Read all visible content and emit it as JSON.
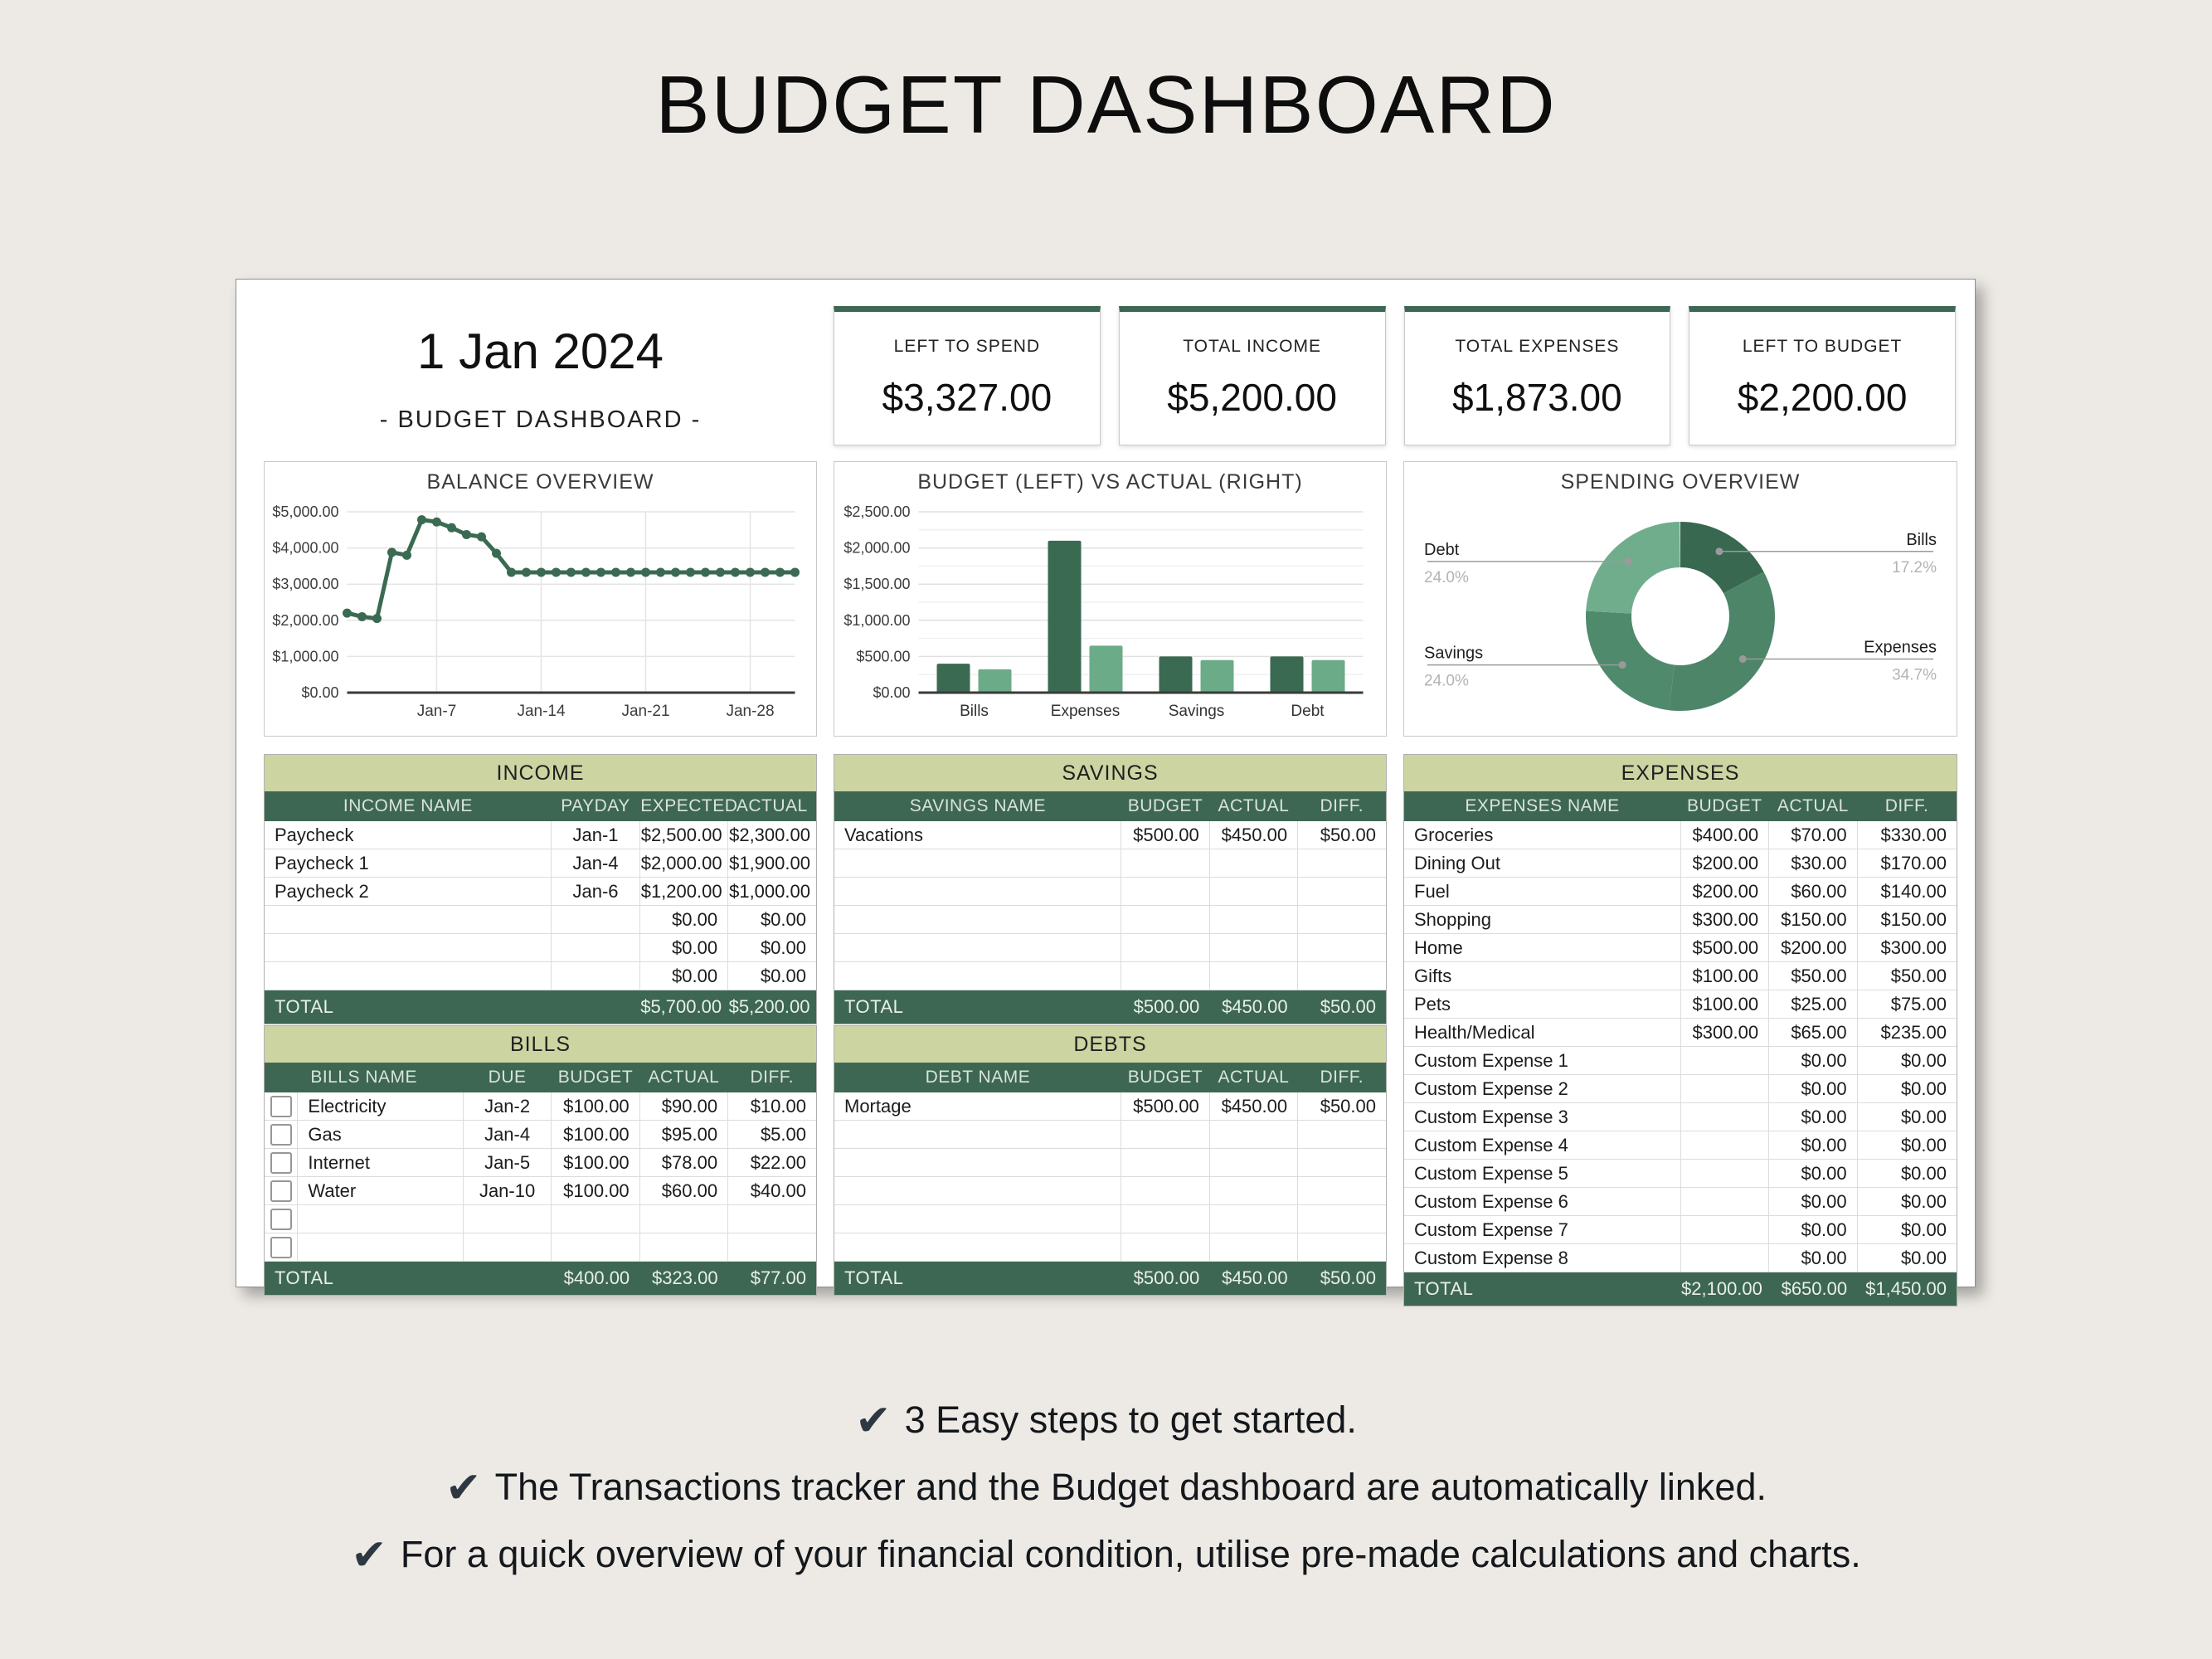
{
  "page": {
    "title": "BUDGET DASHBOARD",
    "background": "#edeae5"
  },
  "icons": {
    "check": "✔"
  },
  "colors": {
    "dark_green": "#3d6752",
    "olive_header": "#ccd5a2",
    "bar_budget": "#3a6a52",
    "bar_actual": "#6cab88",
    "line_series": "#3a6a52"
  },
  "header": {
    "date": "1 Jan 2024",
    "subtitle": "- BUDGET DASHBOARD -"
  },
  "kpis": [
    {
      "label": "LEFT TO SPEND",
      "value": "$3,327.00"
    },
    {
      "label": "TOTAL INCOME",
      "value": "$5,200.00"
    },
    {
      "label": "TOTAL EXPENSES",
      "value": "$1,873.00"
    },
    {
      "label": "LEFT TO BUDGET",
      "value": "$2,200.00"
    }
  ],
  "chart_data": [
    {
      "type": "line",
      "title": "BALANCE OVERVIEW",
      "ylim": [
        0,
        5000
      ],
      "y_step": 1000,
      "days": 31,
      "x_ticks": [
        {
          "day": 7,
          "label": "Jan-7"
        },
        {
          "day": 14,
          "label": "Jan-14"
        },
        {
          "day": 21,
          "label": "Jan-21"
        },
        {
          "day": 28,
          "label": "Jan-28"
        }
      ],
      "values": [
        2200,
        2100,
        2050,
        3880,
        3800,
        4780,
        4720,
        4560,
        4370,
        4310,
        3850,
        3327,
        3327,
        3327,
        3327,
        3327,
        3327,
        3327,
        3327,
        3327,
        3327,
        3327,
        3327,
        3327,
        3327,
        3327,
        3327,
        3327,
        3327,
        3327,
        3327
      ],
      "color": "#3a6a52"
    },
    {
      "type": "bar",
      "title": "BUDGET (LEFT) VS ACTUAL (RIGHT)",
      "categories": [
        "Bills",
        "Expenses",
        "Savings",
        "Debt"
      ],
      "series": [
        {
          "name": "Budget",
          "color": "#3a6a52",
          "values": [
            400,
            2100,
            500,
            500
          ]
        },
        {
          "name": "Actual",
          "color": "#6cab88",
          "values": [
            323,
            650,
            450,
            450
          ]
        }
      ],
      "ylim": [
        0,
        2500
      ],
      "y_major": 500,
      "y_minor": 250
    },
    {
      "type": "donut",
      "title": "SPENDING OVERVIEW",
      "slices": [
        {
          "label": "Bills",
          "pct": 17.2,
          "color": "#38684f"
        },
        {
          "label": "Expenses",
          "pct": 34.7,
          "color": "#4d8568"
        },
        {
          "label": "Savings",
          "pct": 24.0,
          "color": "#4f8a6c"
        },
        {
          "label": "Debt",
          "pct": 24.0,
          "color": "#70ad8c"
        }
      ]
    }
  ],
  "tables": {
    "income": {
      "title": "INCOME",
      "checkbox": false,
      "widths": [
        "52%",
        "16%",
        "16%",
        "16%"
      ],
      "columns": [
        "INCOME NAME",
        "PAYDAY",
        "EXPECTED",
        "ACTUAL"
      ],
      "aligns": [
        "left",
        "center",
        "right",
        "right"
      ],
      "rows": [
        [
          "Paycheck",
          "Jan-1",
          "$2,500.00",
          "$2,300.00"
        ],
        [
          "Paycheck 1",
          "Jan-4",
          "$2,000.00",
          "$1,900.00"
        ],
        [
          "Paycheck 2",
          "Jan-6",
          "$1,200.00",
          "$1,000.00"
        ],
        [
          "",
          "",
          "$0.00",
          "$0.00"
        ],
        [
          "",
          "",
          "$0.00",
          "$0.00"
        ],
        [
          "",
          "",
          "$0.00",
          "$0.00"
        ]
      ],
      "total_label": "TOTAL",
      "total_span": 2,
      "total_values": [
        "$5,700.00",
        "$5,200.00"
      ]
    },
    "savings": {
      "title": "SAVINGS",
      "checkbox": false,
      "widths": [
        "52%",
        "16%",
        "16%",
        "16%"
      ],
      "columns": [
        "SAVINGS NAME",
        "BUDGET",
        "ACTUAL",
        "DIFF."
      ],
      "aligns": [
        "left",
        "right",
        "right",
        "right"
      ],
      "rows": [
        [
          "Vacations",
          "$500.00",
          "$450.00",
          "$50.00"
        ],
        [
          "",
          "",
          "",
          ""
        ],
        [
          "",
          "",
          "",
          ""
        ],
        [
          "",
          "",
          "",
          ""
        ],
        [
          "",
          "",
          "",
          ""
        ],
        [
          "",
          "",
          "",
          ""
        ]
      ],
      "total_label": "TOTAL",
      "total_span": 1,
      "total_values": [
        "$500.00",
        "$450.00",
        "$50.00"
      ]
    },
    "expenses": {
      "title": "EXPENSES",
      "checkbox": false,
      "widths": [
        "50%",
        "16%",
        "16%",
        "18%"
      ],
      "columns": [
        "EXPENSES NAME",
        "BUDGET",
        "ACTUAL",
        "DIFF."
      ],
      "aligns": [
        "left",
        "right",
        "right",
        "right"
      ],
      "rows": [
        [
          "Groceries",
          "$400.00",
          "$70.00",
          "$330.00"
        ],
        [
          "Dining Out",
          "$200.00",
          "$30.00",
          "$170.00"
        ],
        [
          "Fuel",
          "$200.00",
          "$60.00",
          "$140.00"
        ],
        [
          "Shopping",
          "$300.00",
          "$150.00",
          "$150.00"
        ],
        [
          "Home",
          "$500.00",
          "$200.00",
          "$300.00"
        ],
        [
          "Gifts",
          "$100.00",
          "$50.00",
          "$50.00"
        ],
        [
          "Pets",
          "$100.00",
          "$25.00",
          "$75.00"
        ],
        [
          "Health/Medical",
          "$300.00",
          "$65.00",
          "$235.00"
        ],
        [
          "Custom Expense 1",
          "",
          "$0.00",
          "$0.00"
        ],
        [
          "Custom Expense 2",
          "",
          "$0.00",
          "$0.00"
        ],
        [
          "Custom Expense 3",
          "",
          "$0.00",
          "$0.00"
        ],
        [
          "Custom Expense 4",
          "",
          "$0.00",
          "$0.00"
        ],
        [
          "Custom Expense 5",
          "",
          "$0.00",
          "$0.00"
        ],
        [
          "Custom Expense 6",
          "",
          "$0.00",
          "$0.00"
        ],
        [
          "Custom Expense 7",
          "",
          "$0.00",
          "$0.00"
        ],
        [
          "Custom Expense 8",
          "",
          "$0.00",
          "$0.00"
        ]
      ],
      "total_label": "TOTAL",
      "total_span": 1,
      "total_values": [
        "$2,100.00",
        "$650.00",
        "$1,450.00"
      ]
    },
    "bills": {
      "title": "BILLS",
      "checkbox": true,
      "widths": [
        "6%",
        "30%",
        "16%",
        "16%",
        "16%",
        "16%"
      ],
      "columns": [
        "BILLS NAME",
        "DUE",
        "BUDGET",
        "ACTUAL",
        "DIFF."
      ],
      "aligns": [
        "left",
        "center",
        "right",
        "right",
        "right"
      ],
      "rows": [
        [
          "Electricity",
          "Jan-2",
          "$100.00",
          "$90.00",
          "$10.00"
        ],
        [
          "Gas",
          "Jan-4",
          "$100.00",
          "$95.00",
          "$5.00"
        ],
        [
          "Internet",
          "Jan-5",
          "$100.00",
          "$78.00",
          "$22.00"
        ],
        [
          "Water",
          "Jan-10",
          "$100.00",
          "$60.00",
          "$40.00"
        ],
        [
          "",
          "",
          "",
          "",
          ""
        ],
        [
          "",
          "",
          "",
          "",
          ""
        ]
      ],
      "total_label": "TOTAL",
      "total_span": 3,
      "total_values": [
        "$400.00",
        "$323.00",
        "$77.00"
      ]
    },
    "debts": {
      "title": "DEBTS",
      "checkbox": false,
      "widths": [
        "52%",
        "16%",
        "16%",
        "16%"
      ],
      "columns": [
        "DEBT NAME",
        "BUDGET",
        "ACTUAL",
        "DIFF."
      ],
      "aligns": [
        "left",
        "right",
        "right",
        "right"
      ],
      "rows": [
        [
          "Mortage",
          "$500.00",
          "$450.00",
          "$50.00"
        ],
        [
          "",
          "",
          "",
          ""
        ],
        [
          "",
          "",
          "",
          ""
        ],
        [
          "",
          "",
          "",
          ""
        ],
        [
          "",
          "",
          "",
          ""
        ],
        [
          "",
          "",
          "",
          ""
        ]
      ],
      "total_label": "TOTAL",
      "total_span": 1,
      "total_values": [
        "$500.00",
        "$450.00",
        "$50.00"
      ]
    }
  },
  "features": [
    {
      "text": "3 Easy steps to get started."
    },
    {
      "text": "The Transactions tracker and the Budget dashboard are automatically linked."
    },
    {
      "text": "For a quick overview of your financial condition, utilise pre-made calculations and charts."
    }
  ]
}
